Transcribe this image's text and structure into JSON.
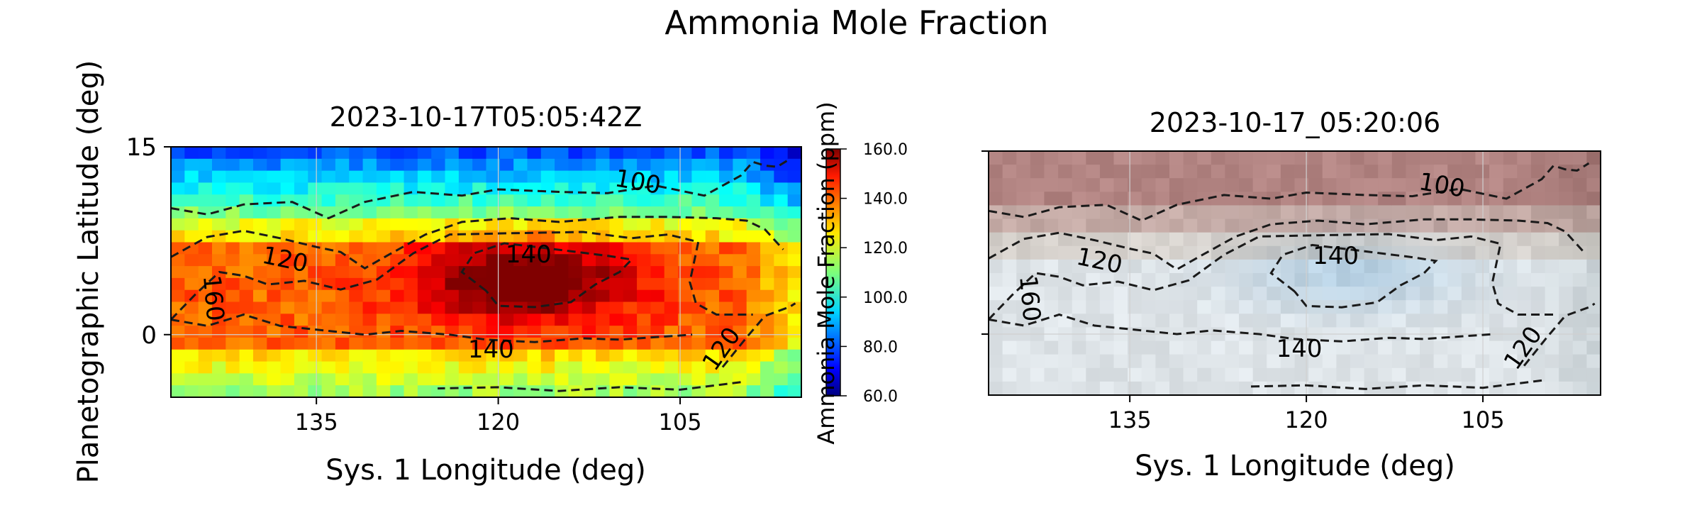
{
  "title": "Ammonia Mole Fraction",
  "chart_data": [
    {
      "type": "heatmap",
      "title": "2023-10-17T05:05:42Z",
      "xlabel": "Sys. 1 Longitude (deg)",
      "ylabel": "Planetographic Latitude (deg)",
      "x_reversed": true,
      "xlim": [
        147,
        95
      ],
      "ylim": [
        -5,
        15
      ],
      "xticks": [
        135,
        120,
        105
      ],
      "xtick_labels": [
        "135",
        "120",
        "105"
      ],
      "yticks": [
        0,
        15
      ],
      "ytick_labels": [
        "0",
        "15"
      ],
      "grid": true,
      "colormap": "jet",
      "colorbar": {
        "label": "Ammonia Mole Fraction (ppm)",
        "range": [
          60,
          160
        ],
        "ticks": [
          160,
          140,
          120,
          100,
          80,
          60
        ],
        "tick_labels": [
          "160.0",
          "140.0",
          "120.0",
          "100.0",
          "80.0",
          "60.0"
        ]
      },
      "contour_levels": [
        100,
        120,
        140,
        160
      ],
      "contour_labels": [
        "100",
        "120",
        "140",
        "160",
        "140",
        "120"
      ],
      "description_note": ""
    },
    {
      "type": "heatmap",
      "title": "2023-10-17_05:20:06",
      "xlabel": "Sys. 1 Longitude (deg)",
      "x_reversed": true,
      "xlim": [
        147,
        95
      ],
      "ylim": [
        -5,
        15
      ],
      "xticks": [
        135,
        120,
        105
      ],
      "xtick_labels": [
        "135",
        "120",
        "105"
      ],
      "grid": true,
      "background": "RGB image",
      "contour_levels": [
        100,
        120,
        140,
        160
      ],
      "contour_labels": [
        "100",
        "120",
        "140",
        "160",
        "140",
        "120"
      ]
    }
  ]
}
